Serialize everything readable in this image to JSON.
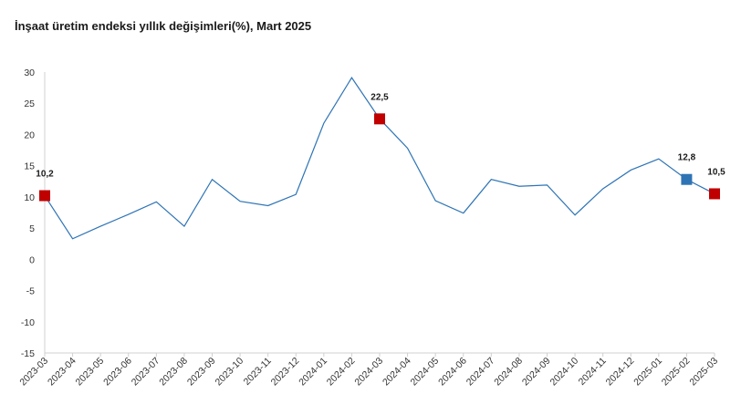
{
  "chart_data": {
    "type": "line",
    "title": "İnşaat üretim endeksi yıllık değişimleri(%), Mart 2025",
    "xlabel": "",
    "ylabel": "",
    "ylim": [
      -15,
      30
    ],
    "yticks": [
      "30",
      "25",
      "20",
      "15",
      "10",
      "5",
      "0",
      "-5",
      "-10",
      "-15"
    ],
    "categories": [
      "2023-03",
      "2023-04",
      "2023-05",
      "2023-06",
      "2023-07",
      "2023-08",
      "2023-09",
      "2023-10",
      "2023-11",
      "2023-12",
      "2024-01",
      "2024-02",
      "2024-03",
      "2024-04",
      "2024-05",
      "2024-06",
      "2024-07",
      "2024-08",
      "2024-09",
      "2024-10",
      "2024-11",
      "2024-12",
      "2025-01",
      "2025-02",
      "2025-03"
    ],
    "series": [
      {
        "values": [
          10.2,
          3.3,
          5.3,
          7.2,
          9.2,
          5.3,
          12.8,
          9.3,
          8.6,
          10.4,
          21.8,
          29.1,
          22.5,
          17.8,
          9.4,
          7.4,
          12.8,
          11.7,
          11.9,
          7.1,
          11.3,
          14.3,
          16.1,
          12.8,
          10.5
        ],
        "color": "#2e74b5"
      }
    ],
    "markers": [
      {
        "index": 0,
        "label": "10,2",
        "color": "#c00000"
      },
      {
        "index": 12,
        "label": "22,5",
        "color": "#c00000"
      },
      {
        "index": 23,
        "label": "12,8",
        "color": "#2e74b5"
      },
      {
        "index": 24,
        "label": "10,5",
        "color": "#c00000"
      }
    ],
    "grid": false,
    "legend": "none"
  }
}
